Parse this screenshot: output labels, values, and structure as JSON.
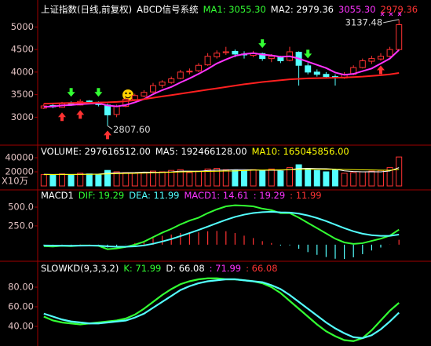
{
  "chart_data": [
    {
      "type": "candlestick",
      "legend": [
        {
          "text": "上证指数(日线,前复权)",
          "color": "#ffffff"
        },
        {
          "text": "ABCD信号系统",
          "color": "#ffffff"
        },
        {
          "text": "MA1: 3055.30",
          "color": "#33ff33"
        },
        {
          "text": "MA2: 2979.36",
          "color": "#ffffff"
        },
        {
          "text": "3055.30",
          "color": "#ff33ff"
        },
        {
          "text": "2979.36",
          "color": "#ff3333"
        }
      ],
      "annotations": [
        "2807.60",
        "3137.48"
      ],
      "up_color": "#ff3232",
      "down_color": "#54ffff",
      "open": [
        3200,
        3260,
        3220,
        3310,
        3270,
        3360,
        3330,
        3270,
        3060,
        3240,
        3390,
        3470,
        3560,
        3710,
        3770,
        3860,
        4010,
        4030,
        4160,
        4340,
        4430,
        4460,
        4400,
        4370,
        4410,
        4300,
        4340,
        4260,
        4440,
        4140,
        4000,
        3950,
        3900,
        3870,
        3950,
        4100,
        4240,
        4290,
        4350,
        4500
      ],
      "high": [
        3300,
        3290,
        3340,
        3350,
        3400,
        3380,
        3350,
        3300,
        3280,
        3430,
        3520,
        3600,
        3760,
        3820,
        3900,
        4050,
        4080,
        4200,
        4420,
        4480,
        4560,
        4500,
        4460,
        4470,
        4430,
        4400,
        4360,
        4560,
        4460,
        4200,
        4060,
        4000,
        3950,
        4000,
        4150,
        4300,
        4360,
        4420,
        4560,
        5166
      ],
      "low": [
        3180,
        3200,
        3210,
        3250,
        3260,
        3290,
        3240,
        2808,
        3000,
        3220,
        3370,
        3440,
        3540,
        3650,
        3740,
        3840,
        3950,
        4000,
        4140,
        4300,
        4380,
        4330,
        4300,
        4330,
        4250,
        4220,
        4200,
        4240,
        3700,
        3950,
        3900,
        3860,
        3700,
        3850,
        3930,
        4080,
        4180,
        4250,
        4330,
        4480
      ],
      "close": [
        3250,
        3230,
        3300,
        3280,
        3350,
        3320,
        3280,
        3050,
        3250,
        3400,
        3480,
        3550,
        3700,
        3780,
        3850,
        4000,
        4020,
        4150,
        4350,
        4420,
        4450,
        4400,
        4380,
        4420,
        4300,
        4350,
        4250,
        4450,
        4150,
        4000,
        3950,
        3900,
        3880,
        3950,
        4100,
        4250,
        4300,
        4350,
        4500,
        5050
      ],
      "series": [
        {
          "color": "#ff33ff",
          "values": [
            3230,
            3240,
            3260,
            3270,
            3290,
            3300,
            3310,
            3260,
            3240,
            3270,
            3330,
            3400,
            3510,
            3600,
            3670,
            3770,
            3860,
            3960,
            4070,
            4190,
            4280,
            4360,
            4400,
            4420,
            4390,
            4370,
            4340,
            4350,
            4300,
            4230,
            4160,
            4090,
            3990,
            3940,
            3960,
            4020,
            4080,
            4190,
            4300,
            4490
          ]
        },
        {
          "color": "#ff2020",
          "values": [
            3300,
            3305,
            3310,
            3315,
            3320,
            3320,
            3325,
            3330,
            3340,
            3355,
            3375,
            3400,
            3430,
            3460,
            3490,
            3520,
            3550,
            3580,
            3610,
            3640,
            3670,
            3700,
            3730,
            3755,
            3780,
            3800,
            3820,
            3840,
            3850,
            3860,
            3865,
            3870,
            3875,
            3880,
            3890,
            3900,
            3915,
            3930,
            3950,
            3980
          ]
        }
      ],
      "ylim": [
        2450,
        5250
      ],
      "yticks": [
        3000,
        3500,
        4000,
        4500,
        5000
      ]
    },
    {
      "type": "volume",
      "legend": [
        {
          "text": "VOLUME: 297616512.00",
          "color": "#ffffff"
        },
        {
          "text": "MA5: 192466128.00",
          "color": "#ffffff"
        },
        {
          "text": "MA10: 165045856.00",
          "color": "#ffff00"
        }
      ],
      "unit_label": "X10万",
      "values": [
        16000,
        15000,
        17000,
        16000,
        18000,
        17000,
        16000,
        22000,
        20000,
        19000,
        18000,
        19000,
        21000,
        20000,
        22000,
        23000,
        19000,
        21000,
        24000,
        25000,
        23000,
        22000,
        21000,
        23000,
        22000,
        24000,
        21000,
        26000,
        30000,
        24000,
        22000,
        20000,
        23000,
        18000,
        19000,
        20000,
        21000,
        22000,
        26000,
        41000
      ],
      "series": [
        {
          "color": "#ffffff",
          "values": [
            16500,
            16200,
            16400,
            16200,
            16400,
            16600,
            16800,
            18000,
            18600,
            18800,
            19000,
            19600,
            19400,
            19400,
            19800,
            21000,
            21000,
            20800,
            21800,
            22400,
            22400,
            23000,
            23000,
            22800,
            22200,
            22400,
            22200,
            23200,
            24600,
            25000,
            24600,
            24400,
            23800,
            21400,
            20400,
            20000,
            20200,
            20000,
            21200,
            26000
          ]
        },
        {
          "color": "#ffff00",
          "values": [
            16000,
            16100,
            16200,
            16200,
            16300,
            16400,
            16500,
            17000,
            17400,
            17600,
            17800,
            18200,
            18700,
            19000,
            19400,
            19800,
            20100,
            20300,
            20600,
            20900,
            21100,
            21300,
            21800,
            22300,
            22500,
            22600,
            22800,
            23000,
            23400,
            23700,
            23600,
            23500,
            23600,
            23400,
            23100,
            22800,
            22700,
            22400,
            22200,
            23500
          ]
        }
      ],
      "ylim": [
        0,
        44000
      ],
      "yticks": [
        20000,
        40000
      ]
    },
    {
      "type": "macd",
      "legend": [
        {
          "text": "MACD1",
          "color": "#ffffff"
        },
        {
          "text": "DIF: 19.29",
          "color": "#33ff33"
        },
        {
          "text": "DEA: 11.99",
          "color": "#54ffff"
        },
        {
          "text": "MACD1: 14.61",
          "color": "#ff33ff"
        },
        {
          "text": ": 19.29",
          "color": "#ff33ff"
        },
        {
          "text": ": 11.99",
          "color": "#ff3333"
        }
      ],
      "histogram": [
        -10,
        -13,
        -2,
        -6,
        3,
        2,
        -2,
        -38,
        -22,
        -2,
        22,
        50,
        88,
        118,
        135,
        156,
        165,
        164,
        179,
        183,
        179,
        155,
        120,
        88,
        47,
        22,
        -11,
        -8,
        -54,
        -99,
        -135,
        -164,
        -187,
        -190,
        -168,
        -126,
        -77,
        -38,
        2,
        65
      ],
      "up_color": "#ff3232",
      "down_color": "#54ffff",
      "series": [
        {
          "color": "#33ff33",
          "values": [
            -20,
            -25,
            -15,
            -20,
            -10,
            -10,
            -15,
            -60,
            -50,
            -30,
            0,
            40,
            100,
            160,
            210,
            270,
            320,
            360,
            420,
            470,
            510,
            525,
            520,
            510,
            480,
            460,
            420,
            420,
            360,
            290,
            220,
            150,
            80,
            30,
            10,
            20,
            50,
            80,
            120,
            200
          ]
        },
        {
          "color": "#54ffff",
          "values": [
            -10,
            -12,
            -13,
            -14,
            -13,
            -12,
            -13,
            -22,
            -28,
            -28,
            -22,
            -10,
            12,
            42,
            75,
            114,
            155,
            196,
            241,
            287,
            331,
            370,
            400,
            422,
            433,
            438,
            431,
            428,
            414,
            389,
            355,
            314,
            267,
            220,
            178,
            146,
            127,
            118,
            118,
            135
          ]
        }
      ],
      "ylim": [
        -200,
        640
      ],
      "yticks": [
        {
          "value": 250,
          "label": "250.0"
        },
        {
          "value": 500,
          "label": "500.0"
        }
      ]
    },
    {
      "type": "line",
      "legend": [
        {
          "text": "SLOWKD(9,3,3,2)",
          "color": "#ffffff"
        },
        {
          "text": "K: 71.99",
          "color": "#33ff33"
        },
        {
          "text": "D: 66.08",
          "color": "#ffffff"
        },
        {
          "text": ": 71.99",
          "color": "#ff33ff"
        },
        {
          "text": ": 66.08",
          "color": "#ff3333"
        }
      ],
      "series": [
        {
          "color": "#33ff33",
          "values": [
            50,
            46,
            44,
            43,
            42,
            43,
            44,
            45,
            46,
            48,
            52,
            58,
            65,
            72,
            78,
            83,
            86,
            88,
            89,
            89,
            88,
            88,
            87,
            86,
            84,
            80,
            74,
            66,
            58,
            50,
            42,
            35,
            30,
            26,
            25,
            28,
            36,
            46,
            56,
            64
          ]
        },
        {
          "color": "#54ffff",
          "values": [
            53,
            50,
            47,
            45,
            44,
            43,
            43,
            44,
            45,
            46,
            49,
            53,
            59,
            65,
            71,
            77,
            81,
            84,
            86,
            87,
            88,
            88,
            87,
            86,
            85,
            82,
            78,
            72,
            65,
            58,
            51,
            44,
            38,
            33,
            29,
            28,
            31,
            37,
            45,
            54
          ]
        }
      ],
      "ylim": [
        22,
        97
      ],
      "yticks": [
        {
          "value": 40,
          "label": "40.00"
        },
        {
          "value": 60,
          "label": "60.00"
        },
        {
          "value": 80,
          "label": "80.00"
        }
      ]
    }
  ]
}
